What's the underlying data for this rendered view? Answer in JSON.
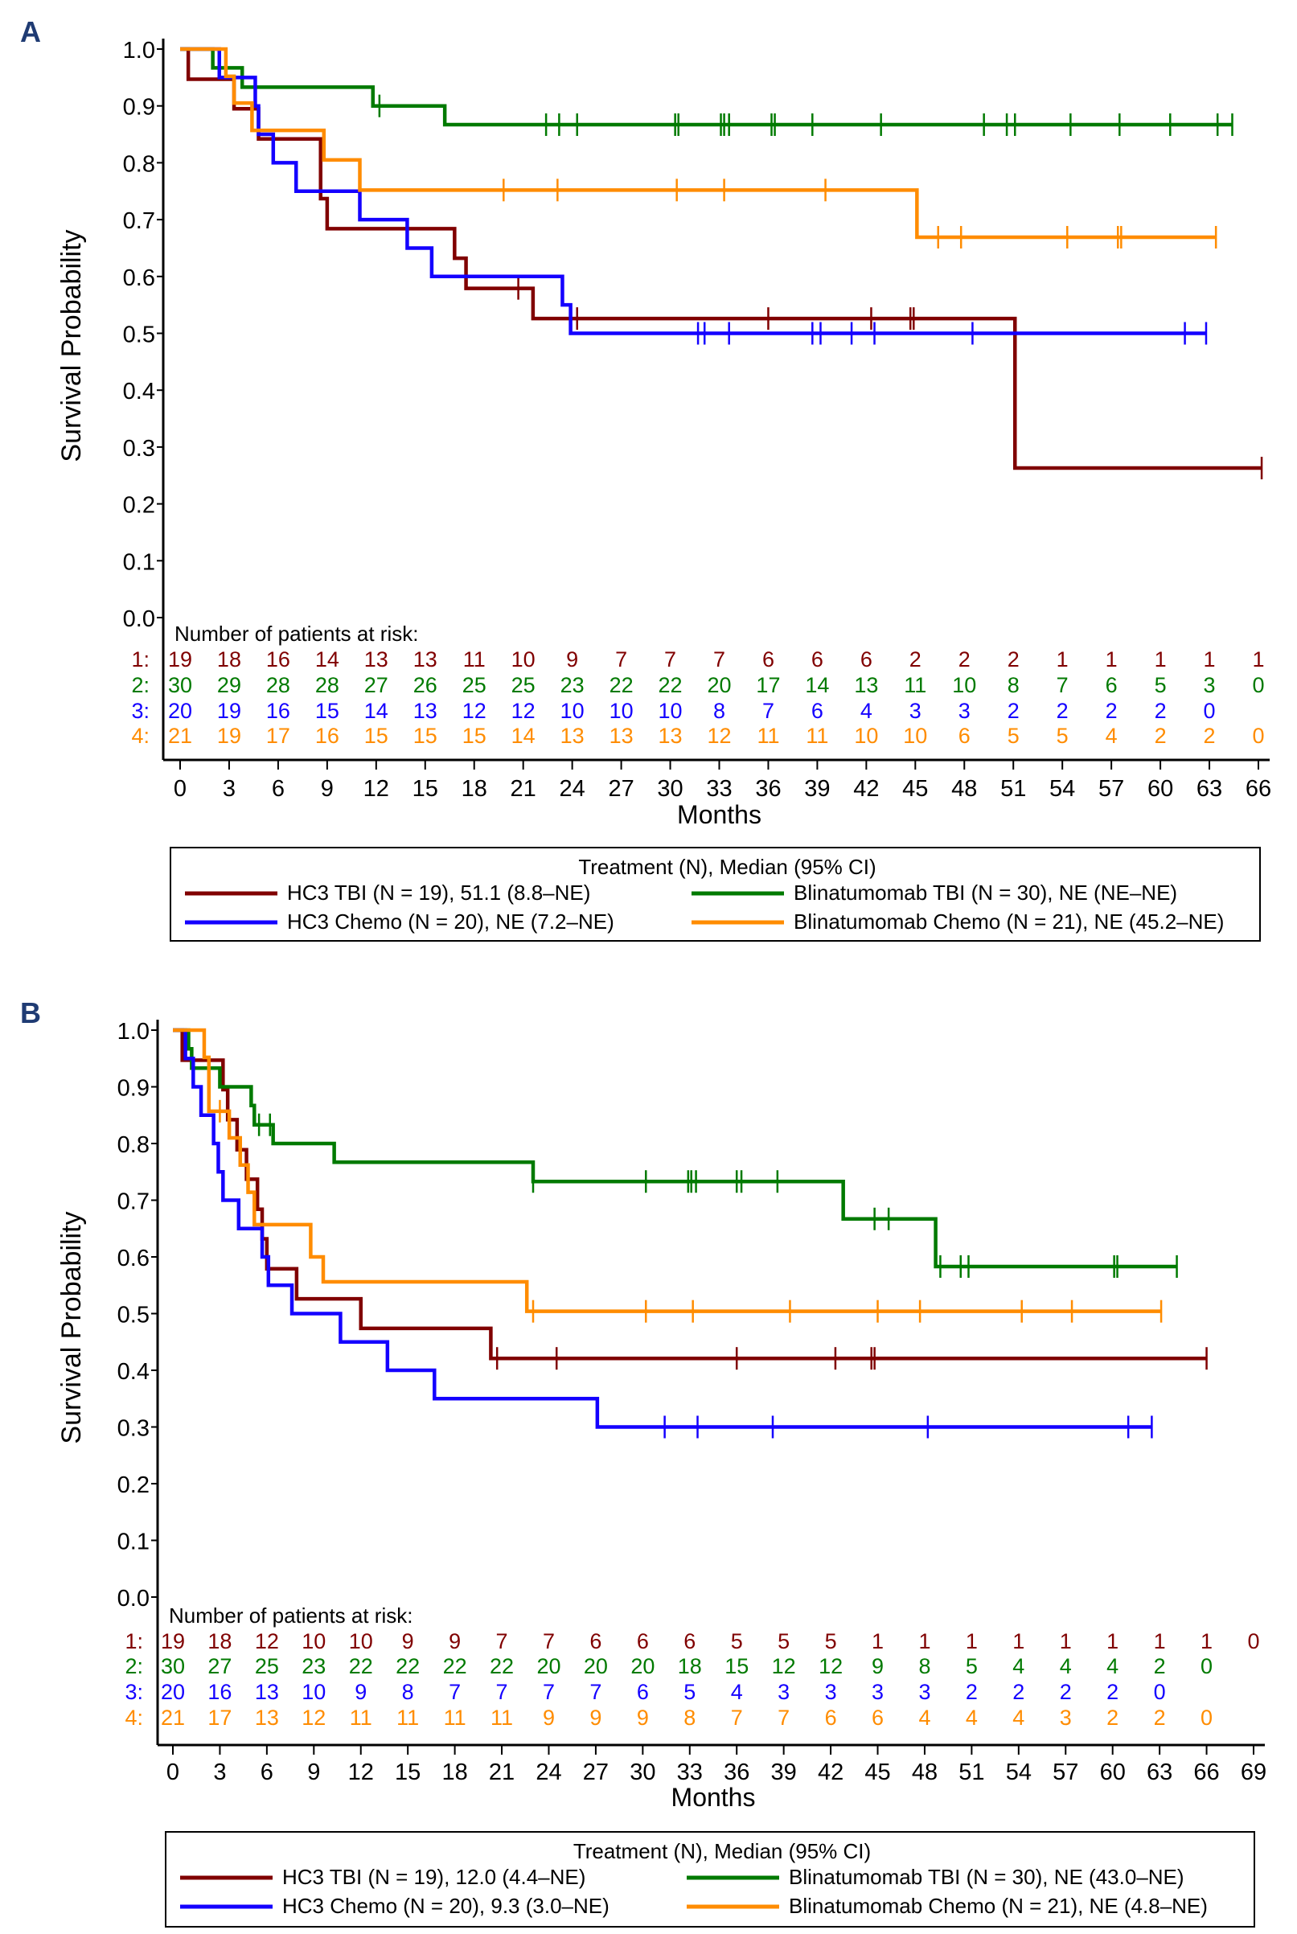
{
  "colors": {
    "hc3_tbi": "#800000",
    "blina_tbi": "#007a00",
    "hc3_chemo": "#1400ff",
    "blina_chemo": "#ff8c00",
    "axis": "#000000",
    "panel_label": "#1f3b73"
  },
  "chart_data": [
    {
      "panel": "A",
      "type": "line",
      "step": true,
      "xlabel": "Months",
      "ylabel": "Survival Probability",
      "xlim": [
        0,
        66
      ],
      "ylim": [
        0,
        1.0
      ],
      "xticks": [
        0,
        3,
        6,
        9,
        12,
        15,
        18,
        21,
        24,
        27,
        30,
        33,
        36,
        39,
        42,
        45,
        48,
        51,
        54,
        57,
        60,
        63,
        66
      ],
      "yticks": [
        "0.0",
        "0.1",
        "0.2",
        "0.3",
        "0.4",
        "0.5",
        "0.6",
        "0.7",
        "0.8",
        "0.9",
        "1.0"
      ],
      "grid": false,
      "risk_table_title": "Number of patients at risk:",
      "risk_table": [
        {
          "label": "1:",
          "series": "hc3_tbi",
          "values": [
            19,
            18,
            16,
            14,
            13,
            13,
            11,
            10,
            9,
            7,
            7,
            7,
            6,
            6,
            6,
            2,
            2,
            2,
            1,
            1,
            1,
            1,
            1
          ]
        },
        {
          "label": "2:",
          "series": "blina_tbi",
          "values": [
            30,
            29,
            28,
            28,
            27,
            26,
            25,
            25,
            23,
            22,
            22,
            20,
            17,
            14,
            13,
            11,
            10,
            8,
            7,
            6,
            5,
            3,
            0
          ]
        },
        {
          "label": "3:",
          "series": "hc3_chemo",
          "values": [
            20,
            19,
            16,
            15,
            14,
            13,
            12,
            12,
            10,
            10,
            10,
            8,
            7,
            6,
            4,
            3,
            3,
            2,
            2,
            2,
            2,
            0
          ]
        },
        {
          "label": "4:",
          "series": "blina_chemo",
          "values": [
            21,
            19,
            17,
            16,
            15,
            15,
            15,
            14,
            13,
            13,
            13,
            12,
            11,
            11,
            10,
            10,
            6,
            5,
            5,
            4,
            2,
            2,
            0
          ]
        }
      ],
      "legend_title": "Treatment (N), Median (95% CI)",
      "legend_position": "bottom",
      "series": [
        {
          "key": "hc3_tbi",
          "name": "HC3 TBI (N = 19), 51.1 (8.8–NE)",
          "steps": [
            [
              0,
              1.0
            ],
            [
              0.5,
              0.947
            ],
            [
              3.3,
              0.895
            ],
            [
              4.8,
              0.842
            ],
            [
              8.6,
              0.737
            ],
            [
              9.0,
              0.684
            ],
            [
              16.8,
              0.632
            ],
            [
              17.5,
              0.579
            ],
            [
              21.6,
              0.526
            ],
            [
              51.1,
              0.263
            ]
          ],
          "end": 66.2,
          "censored": [
            20.7,
            24.3,
            36.0,
            42.3,
            44.7,
            44.9,
            66.2
          ]
        },
        {
          "key": "blina_tbi",
          "name": "Blinatumomab TBI (N = 30), NE (NE–NE)",
          "steps": [
            [
              0,
              1.0
            ],
            [
              2.0,
              0.967
            ],
            [
              3.8,
              0.933
            ],
            [
              11.8,
              0.9
            ],
            [
              16.2,
              0.867
            ]
          ],
          "end": 64.4,
          "censored": [
            12.2,
            22.4,
            23.2,
            24.3,
            30.3,
            30.5,
            33.1,
            33.3,
            33.6,
            36.2,
            36.4,
            38.7,
            42.9,
            49.2,
            50.6,
            51.1,
            54.5,
            57.5,
            60.6,
            63.5,
            64.4
          ]
        },
        {
          "key": "hc3_chemo",
          "name": "HC3 Chemo (N = 20), NE (7.2–NE)",
          "steps": [
            [
              0,
              1.0
            ],
            [
              2.4,
              0.95
            ],
            [
              4.6,
              0.9
            ],
            [
              4.8,
              0.85
            ],
            [
              5.7,
              0.8
            ],
            [
              7.1,
              0.75
            ],
            [
              11.0,
              0.7
            ],
            [
              13.9,
              0.65
            ],
            [
              15.4,
              0.6
            ],
            [
              23.4,
              0.55
            ],
            [
              23.9,
              0.5
            ]
          ],
          "end": 62.8,
          "censored": [
            31.7,
            32.1,
            33.6,
            38.7,
            39.2,
            41.1,
            42.5,
            48.5,
            61.5,
            62.8
          ]
        },
        {
          "key": "blina_chemo",
          "name": "Blinatumomab Chemo (N = 21), NE (45.2–NE)",
          "steps": [
            [
              0,
              1.0
            ],
            [
              2.8,
              0.952
            ],
            [
              3.3,
              0.905
            ],
            [
              4.4,
              0.857
            ],
            [
              8.8,
              0.805
            ],
            [
              11.0,
              0.752
            ],
            [
              45.1,
              0.669
            ]
          ],
          "end": 63.4,
          "censored": [
            19.8,
            23.1,
            30.4,
            33.3,
            39.5,
            46.4,
            47.8,
            54.3,
            57.4,
            57.6,
            63.4
          ]
        }
      ]
    },
    {
      "panel": "B",
      "type": "line",
      "step": true,
      "xlabel": "Months",
      "ylabel": "Survival Probability",
      "xlim": [
        0,
        69
      ],
      "ylim": [
        0,
        1.0
      ],
      "xticks": [
        0,
        3,
        6,
        9,
        12,
        15,
        18,
        21,
        24,
        27,
        30,
        33,
        36,
        39,
        42,
        45,
        48,
        51,
        54,
        57,
        60,
        63,
        66,
        69
      ],
      "yticks": [
        "0.0",
        "0.1",
        "0.2",
        "0.3",
        "0.4",
        "0.5",
        "0.6",
        "0.7",
        "0.8",
        "0.9",
        "1.0"
      ],
      "grid": false,
      "risk_table_title": "Number of patients at risk:",
      "risk_table": [
        {
          "label": "1:",
          "series": "hc3_tbi",
          "values": [
            19,
            18,
            12,
            10,
            10,
            9,
            9,
            7,
            7,
            6,
            6,
            6,
            5,
            5,
            5,
            1,
            1,
            1,
            1,
            1,
            1,
            1,
            1,
            0
          ]
        },
        {
          "label": "2:",
          "series": "blina_tbi",
          "values": [
            30,
            27,
            25,
            23,
            22,
            22,
            22,
            22,
            20,
            20,
            20,
            18,
            15,
            12,
            12,
            9,
            8,
            5,
            4,
            4,
            4,
            2,
            0
          ]
        },
        {
          "label": "3:",
          "series": "hc3_chemo",
          "values": [
            20,
            16,
            13,
            10,
            9,
            8,
            7,
            7,
            7,
            7,
            6,
            5,
            4,
            3,
            3,
            3,
            3,
            2,
            2,
            2,
            2,
            0
          ]
        },
        {
          "label": "4:",
          "series": "blina_chemo",
          "values": [
            21,
            17,
            13,
            12,
            11,
            11,
            11,
            11,
            9,
            9,
            9,
            8,
            7,
            7,
            6,
            6,
            4,
            4,
            4,
            3,
            2,
            2,
            0
          ]
        }
      ],
      "legend_title": "Treatment (N), Median (95% CI)",
      "legend_position": "bottom",
      "series": [
        {
          "key": "hc3_tbi",
          "name": "HC3 TBI (N = 19), 12.0 (4.4–NE)",
          "steps": [
            [
              0,
              1.0
            ],
            [
              0.6,
              0.947
            ],
            [
              3.2,
              0.895
            ],
            [
              3.5,
              0.842
            ],
            [
              4.1,
              0.789
            ],
            [
              4.7,
              0.737
            ],
            [
              5.4,
              0.684
            ],
            [
              5.7,
              0.632
            ],
            [
              6.0,
              0.579
            ],
            [
              7.9,
              0.526
            ],
            [
              12.0,
              0.474
            ],
            [
              20.3,
              0.421
            ]
          ],
          "end": 66.0,
          "censored": [
            20.7,
            24.5,
            36.0,
            42.3,
            44.6,
            44.8,
            66.0
          ]
        },
        {
          "key": "blina_tbi",
          "name": "Blinatumomab TBI (N = 30), NE (43.0–NE)",
          "steps": [
            [
              0,
              1.0
            ],
            [
              1.0,
              0.967
            ],
            [
              1.2,
              0.933
            ],
            [
              3.0,
              0.9
            ],
            [
              5.0,
              0.867
            ],
            [
              5.2,
              0.833
            ],
            [
              6.4,
              0.8
            ],
            [
              10.3,
              0.767
            ],
            [
              23.0,
              0.733
            ],
            [
              42.8,
              0.667
            ],
            [
              48.7,
              0.583
            ]
          ],
          "end": 64.1,
          "censored": [
            5.5,
            6.2,
            23.0,
            30.2,
            32.9,
            33.1,
            33.4,
            36.0,
            36.3,
            38.6,
            44.8,
            45.7,
            49.0,
            50.3,
            50.8,
            60.1,
            60.3,
            64.1
          ]
        },
        {
          "key": "hc3_chemo",
          "name": "HC3 Chemo (N = 20), 9.3 (3.0–NE)",
          "steps": [
            [
              0,
              1.0
            ],
            [
              0.8,
              0.95
            ],
            [
              1.3,
              0.9
            ],
            [
              1.8,
              0.85
            ],
            [
              2.6,
              0.8
            ],
            [
              2.9,
              0.75
            ],
            [
              3.2,
              0.7
            ],
            [
              4.2,
              0.65
            ],
            [
              5.7,
              0.6
            ],
            [
              6.1,
              0.55
            ],
            [
              7.6,
              0.5
            ],
            [
              10.7,
              0.45
            ],
            [
              13.7,
              0.4
            ],
            [
              16.7,
              0.35
            ],
            [
              27.1,
              0.3
            ]
          ],
          "end": 62.5,
          "censored": [
            31.4,
            33.5,
            38.3,
            48.2,
            61.0,
            62.5
          ]
        },
        {
          "key": "blina_chemo",
          "name": "Blinatumomab Chemo (N = 21), NE (4.8–NE)",
          "steps": [
            [
              0,
              1.0
            ],
            [
              2.0,
              0.952
            ],
            [
              2.3,
              0.857
            ],
            [
              3.6,
              0.81
            ],
            [
              4.3,
              0.762
            ],
            [
              4.8,
              0.714
            ],
            [
              5.2,
              0.657
            ],
            [
              8.8,
              0.6
            ],
            [
              9.6,
              0.556
            ],
            [
              22.6,
              0.504
            ]
          ],
          "end": 63.1,
          "censored": [
            3.0,
            23.0,
            30.2,
            33.2,
            39.4,
            45.0,
            47.7,
            54.2,
            57.4,
            63.1
          ]
        }
      ]
    }
  ]
}
